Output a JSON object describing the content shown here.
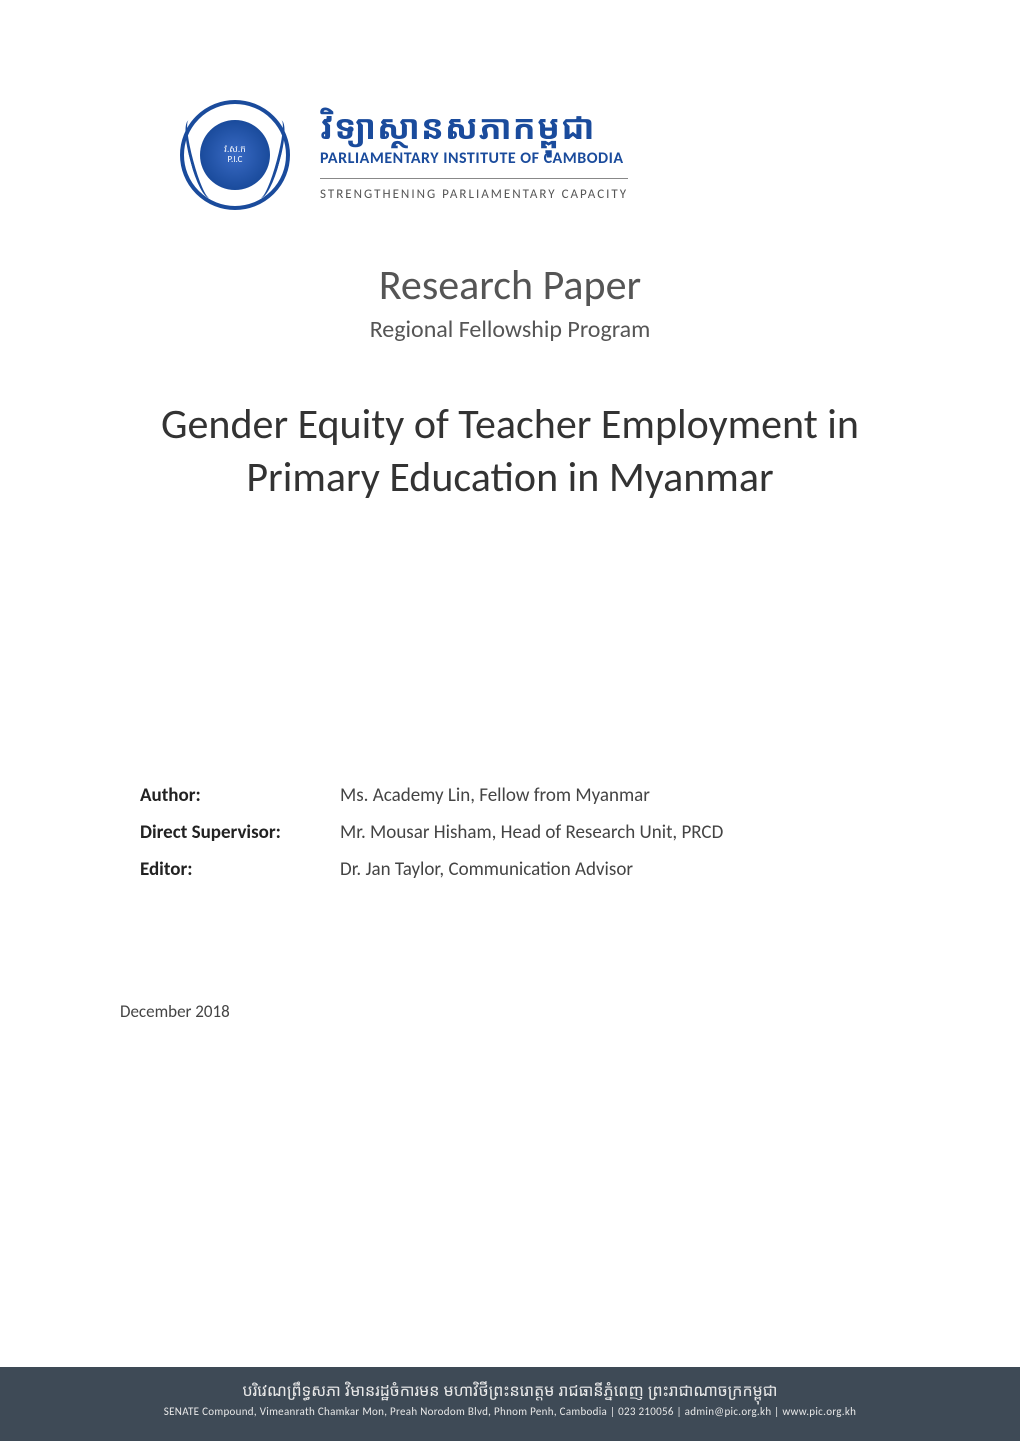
{
  "colors": {
    "brand_blue": "#1a4b9c",
    "text_dark": "#333333",
    "text_mid": "#555555",
    "footer_bg": "#3e4a56",
    "footer_text": "#e8e8e8",
    "page_bg": "#ffffff"
  },
  "typography": {
    "body_family": "Calibri, Segoe UI, Arial, sans-serif",
    "doc_type_size_pt": 32,
    "program_size_pt": 18,
    "title_size_pt": 32,
    "credits_size_pt": 14,
    "date_size_pt": 13,
    "footer_en_size_pt": 8
  },
  "header": {
    "seal": {
      "abbrev_top": "វ.ស.ក",
      "abbrev_en": "P.I.C",
      "ring_text": "PARLIAMENTARY INSTITUTE OF CAMBODIA"
    },
    "institution_name_khmer": "វិទ្យាស្ថានសភាកម្ពុជា",
    "institution_name_en": "PARLIAMENTARY INSTITUTE OF CAMBODIA",
    "tagline": "STRENGTHENING PARLIAMENTARY CAPACITY"
  },
  "doc_type": "Research Paper",
  "program": "Regional Fellowship Program",
  "title": "Gender Equity of Teacher Employment in Primary Education in Myanmar",
  "credits": [
    {
      "label": "Author:",
      "value": "Ms. Academy Lin, Fellow from Myanmar"
    },
    {
      "label": "Direct Supervisor:",
      "value": "Mr. Mousar Hisham, Head of Research Unit, PRCD"
    },
    {
      "label": "Editor:",
      "value": "Dr. Jan Taylor, Communication Advisor"
    }
  ],
  "date": "December 2018",
  "footer": {
    "address_khmer": "បរិវេណព្រឹទ្ធសភា វិមានរដ្ឋចំការមន មហាវិថីព្រះនរោត្តម រាជធានីភ្នំពេញ ព្រះរាជាណាចក្រកម្ពុជា",
    "address_en": "SENATE Compound, Vimeanrath Chamkar Mon, Preah Norodom Blvd, Phnom Penh, Cambodia | 023 210056 | admin@pic.org.kh | www.pic.org.kh"
  }
}
